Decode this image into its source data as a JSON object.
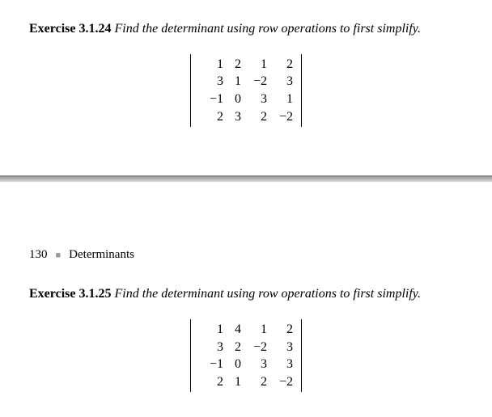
{
  "section_top": {
    "exercise_label": "Exercise 3.1.24",
    "exercise_prompt": "Find the determinant using row operations to first simplify.",
    "matrix": {
      "rows": [
        [
          "1",
          "2",
          "1",
          "2"
        ],
        [
          "3",
          "1",
          "−2",
          "3"
        ],
        [
          "−1",
          "0",
          "3",
          "1"
        ],
        [
          "2",
          "3",
          "2",
          "−2"
        ]
      ]
    }
  },
  "page_header": {
    "page_number": "130",
    "chapter": "Determinants"
  },
  "section_bottom": {
    "exercise_label": "Exercise 3.1.25",
    "exercise_prompt": "Find the determinant using row operations to first simplify.",
    "matrix": {
      "rows": [
        [
          "1",
          "4",
          "1",
          "2"
        ],
        [
          "3",
          "2",
          "−2",
          "3"
        ],
        [
          "−1",
          "0",
          "3",
          "3"
        ],
        [
          "2",
          "1",
          "2",
          "−2"
        ]
      ]
    }
  },
  "style": {
    "background": "#ffffff",
    "text_color": "#000000",
    "border_color": "#000000",
    "divider_colors": [
      "#848484",
      "#a9a9a9",
      "#d8d8d8"
    ],
    "bullet_color": "#9a9a9a",
    "font_family": "Times New Roman",
    "base_font_size": 16
  }
}
